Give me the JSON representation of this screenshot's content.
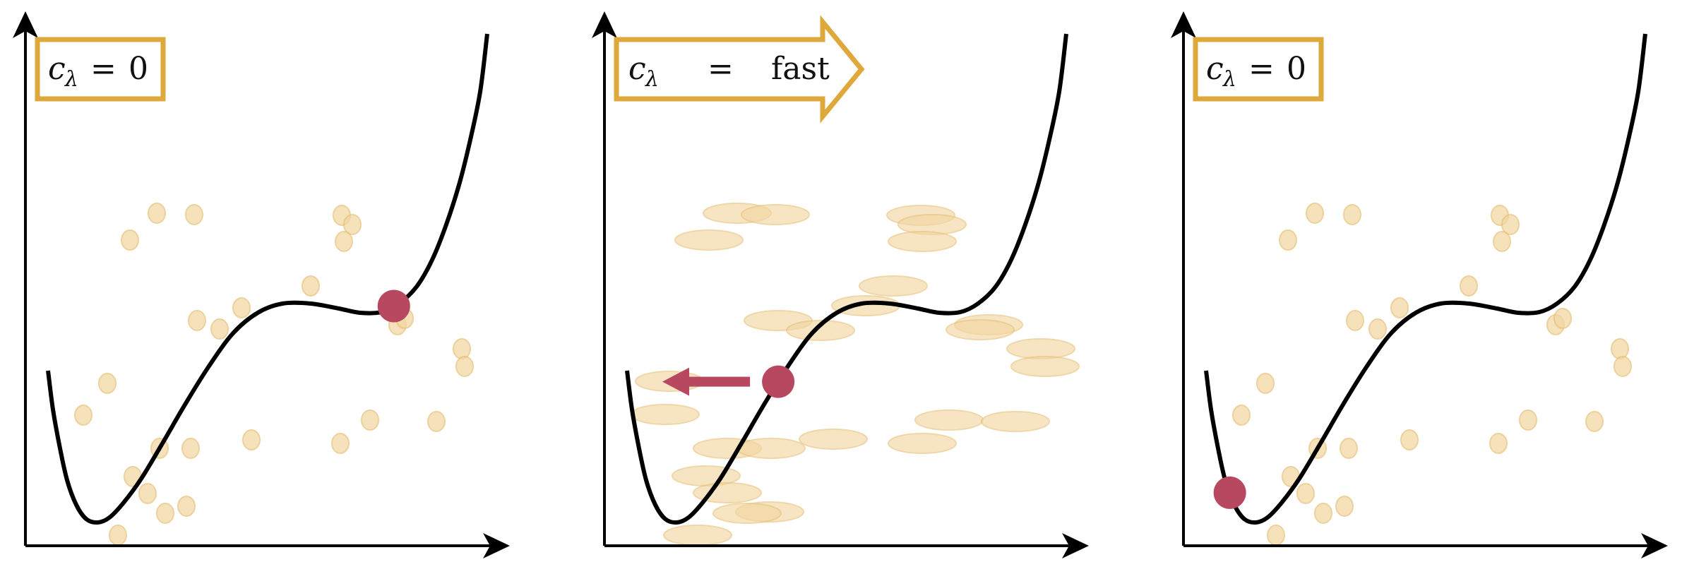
{
  "colors": {
    "curve": "#000000",
    "axes": "#000000",
    "ball": "#b8485f",
    "particle_fill": "#f2d7a3",
    "particle_stroke": "#e8c27c",
    "label_border": "#dea83a",
    "arrow": "#b8485f"
  },
  "panels": [
    {
      "id": "left",
      "label": {
        "var": "c",
        "sub": "λ",
        "eq": "=",
        "value": "0",
        "shape": "box"
      },
      "ball_on_curve_x": 0.73,
      "particles": "round"
    },
    {
      "id": "middle",
      "label": {
        "var": "c",
        "sub": "λ",
        "eq": "=",
        "value": "fast",
        "shape": "arrow-right"
      },
      "ball_on_curve_x": 0.43,
      "ball_motion": "left",
      "particles": "stretched"
    },
    {
      "id": "right",
      "label": {
        "var": "c",
        "sub": "λ",
        "eq": "=",
        "value": "0",
        "shape": "box"
      },
      "ball_on_curve_x": 0.13,
      "particles": "round"
    }
  ]
}
